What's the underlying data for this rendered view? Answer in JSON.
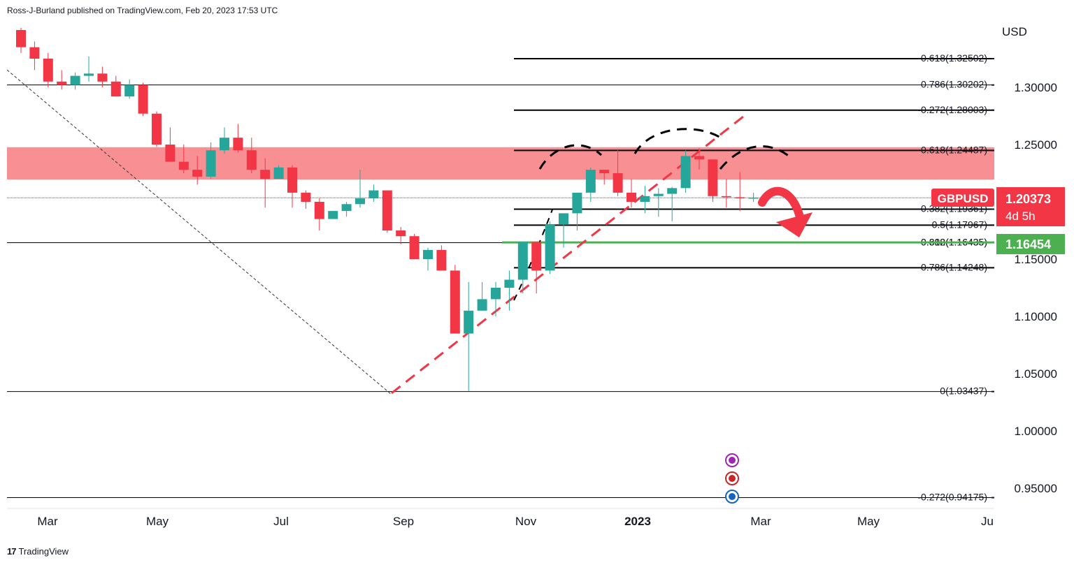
{
  "header": {
    "attribution": "Ross-J-Burland published on TradingView.com, Feb 20, 2023 17:53 UTC"
  },
  "price_axis": {
    "currency": "USD"
  },
  "footer": {
    "brand": "TradingView",
    "brand_mark": "17"
  },
  "colors": {
    "up": "#26a69a",
    "down": "#f23645",
    "zone": "#f77c80",
    "green_line": "#4caf50",
    "grid_text": "#131722"
  },
  "chart_data": {
    "type": "candlestick",
    "symbol": "GBPUSD",
    "timeframe": "weekly",
    "y_ticks": [
      "1.30000",
      "1.25000",
      "1.15000",
      "1.10000",
      "1.05000",
      "1.00000",
      "0.95000"
    ],
    "x_ticks": [
      "Mar",
      "May",
      "Jul",
      "Sep",
      "Nov",
      "2023",
      "Mar",
      "May",
      "Ju"
    ],
    "ylim": [
      0.92,
      1.355
    ],
    "last_price": {
      "label": "GBPUSD",
      "value": "1.20373",
      "countdown": "4d 5h"
    },
    "green_level": {
      "value": "1.16454"
    },
    "resistance_zone": [
      1.2195,
      1.2477
    ],
    "fib_levels": [
      {
        "label": "-0.618(1.32502)",
        "value": 1.32502
      },
      {
        "label": "0.786(1.30202)",
        "value": 1.30202
      },
      {
        "label": "-0.272(1.28003)",
        "value": 1.28003
      },
      {
        "label": "0.618(1.24487)",
        "value": 1.24487
      },
      {
        "label": "0",
        "value": 1.2035
      },
      {
        "label": "0.382(1.19361)",
        "value": 1.19361
      },
      {
        "label": "0.5(1.17967)",
        "value": 1.17967
      },
      {
        "label": "0.382(1.16435)",
        "value": 1.16435
      },
      {
        "label": "0.618(1.16435)",
        "value": 1.16435
      },
      {
        "label": "0.786(1.14248)",
        "value": 1.14248
      },
      {
        "label": "0(1.03437)",
        "value": 1.03437
      },
      {
        "label": "-0.272(0.94175)",
        "value": 0.94175
      }
    ],
    "candles": [
      [
        1.35,
        1.352,
        1.33,
        1.335
      ],
      [
        1.335,
        1.34,
        1.315,
        1.325
      ],
      [
        1.325,
        1.33,
        1.3,
        1.305
      ],
      [
        1.305,
        1.315,
        1.298,
        1.302
      ],
      [
        1.302,
        1.313,
        1.298,
        1.31
      ],
      [
        1.31,
        1.327,
        1.305,
        1.312
      ],
      [
        1.312,
        1.318,
        1.3,
        1.305
      ],
      [
        1.305,
        1.31,
        1.292,
        1.292
      ],
      [
        1.292,
        1.307,
        1.29,
        1.302
      ],
      [
        1.302,
        1.304,
        1.275,
        1.277
      ],
      [
        1.277,
        1.279,
        1.248,
        1.25
      ],
      [
        1.25,
        1.265,
        1.235,
        1.235
      ],
      [
        1.235,
        1.25,
        1.225,
        1.228
      ],
      [
        1.228,
        1.24,
        1.215,
        1.222
      ],
      [
        1.222,
        1.252,
        1.22,
        1.245
      ],
      [
        1.245,
        1.265,
        1.242,
        1.256
      ],
      [
        1.256,
        1.268,
        1.243,
        1.245
      ],
      [
        1.245,
        1.256,
        1.225,
        1.228
      ],
      [
        1.228,
        1.238,
        1.195,
        1.22
      ],
      [
        1.22,
        1.232,
        1.22,
        1.23
      ],
      [
        1.23,
        1.232,
        1.195,
        1.208
      ],
      [
        1.208,
        1.21,
        1.194,
        1.2
      ],
      [
        1.2,
        1.203,
        1.175,
        1.185
      ],
      [
        1.185,
        1.192,
        1.185,
        1.192
      ],
      [
        1.192,
        1.2,
        1.187,
        1.198
      ],
      [
        1.198,
        1.228,
        1.195,
        1.203
      ],
      [
        1.203,
        1.215,
        1.2,
        1.21
      ],
      [
        1.21,
        1.21,
        1.173,
        1.175
      ],
      [
        1.175,
        1.178,
        1.163,
        1.17
      ],
      [
        1.17,
        1.172,
        1.15,
        1.15
      ],
      [
        1.15,
        1.16,
        1.14,
        1.158
      ],
      [
        1.158,
        1.162,
        1.14,
        1.14
      ],
      [
        1.14,
        1.145,
        1.085,
        1.085
      ],
      [
        1.085,
        1.13,
        1.035,
        1.105
      ],
      [
        1.105,
        1.13,
        1.105,
        1.115
      ],
      [
        1.115,
        1.13,
        1.1,
        1.125
      ],
      [
        1.125,
        1.14,
        1.105,
        1.132
      ],
      [
        1.132,
        1.165,
        1.12,
        1.165
      ],
      [
        1.165,
        1.165,
        1.12,
        1.14
      ],
      [
        1.14,
        1.183,
        1.137,
        1.18
      ],
      [
        1.18,
        1.19,
        1.16,
        1.19
      ],
      [
        1.19,
        1.208,
        1.175,
        1.208
      ],
      [
        1.208,
        1.23,
        1.2,
        1.228
      ],
      [
        1.228,
        1.228,
        1.215,
        1.225
      ],
      [
        1.225,
        1.246,
        1.205,
        1.208
      ],
      [
        1.208,
        1.22,
        1.195,
        1.2
      ],
      [
        1.2,
        1.214,
        1.19,
        1.205
      ],
      [
        1.205,
        1.212,
        1.187,
        1.207
      ],
      [
        1.207,
        1.213,
        1.183,
        1.212
      ],
      [
        1.212,
        1.245,
        1.208,
        1.24
      ],
      [
        1.24,
        1.247,
        1.228,
        1.237
      ],
      [
        1.237,
        1.237,
        1.2,
        1.205
      ],
      [
        1.205,
        1.22,
        1.195,
        1.204
      ],
      [
        1.204,
        1.226,
        1.192,
        1.203
      ],
      [
        1.203,
        1.208,
        1.2,
        1.2037
      ]
    ]
  }
}
